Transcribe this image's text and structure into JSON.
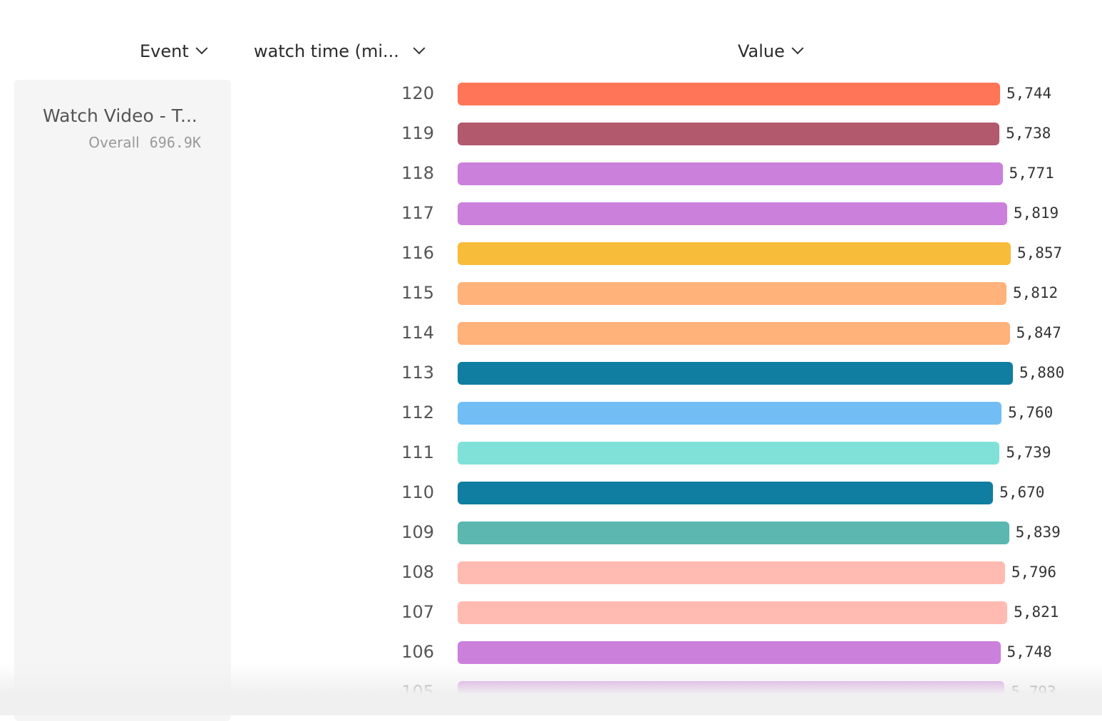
{
  "headers": {
    "event": "Event",
    "breakdown": "watch time (mi...",
    "value": "Value"
  },
  "event_card": {
    "name": "Watch Video - T...",
    "overall_label": "Overall",
    "overall_value": "696.9K"
  },
  "chart_data": {
    "type": "bar",
    "orientation": "horizontal",
    "categories": [
      "120",
      "119",
      "118",
      "117",
      "116",
      "115",
      "114",
      "113",
      "112",
      "111",
      "110",
      "109",
      "108",
      "107",
      "106",
      "105"
    ],
    "values": [
      5744,
      5738,
      5771,
      5819,
      5857,
      5812,
      5847,
      5880,
      5760,
      5739,
      5670,
      5839,
      5796,
      5821,
      5748,
      5793
    ],
    "value_labels": [
      "5,744",
      "5,738",
      "5,771",
      "5,819",
      "5,857",
      "5,812",
      "5,847",
      "5,880",
      "5,760",
      "5,739",
      "5,670",
      "5,839",
      "5,796",
      "5,821",
      "5,748",
      "5,793"
    ],
    "colors": [
      "#ff7557",
      "#b2596e",
      "#cb80dc",
      "#cb80dc",
      "#f8bc3b",
      "#ffb27a",
      "#ffb27a",
      "#0f7ea0",
      "#72bef4",
      "#80e1d9",
      "#0f7ea0",
      "#5bb7af",
      "#ffbbb1",
      "#ffbbb1",
      "#cb80dc",
      "#cb80dc"
    ],
    "xlim": [
      0,
      5880
    ]
  }
}
